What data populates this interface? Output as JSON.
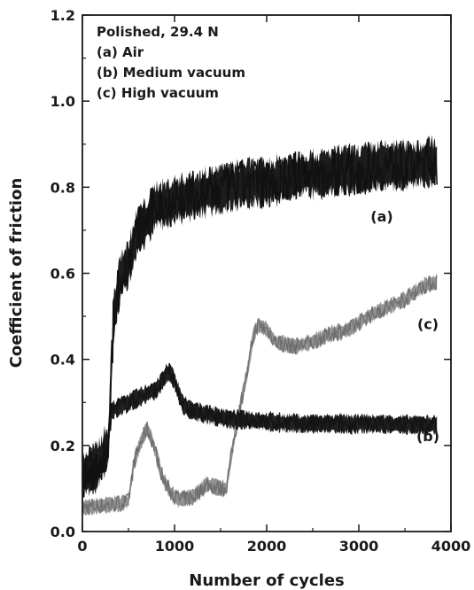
{
  "chart_data": {
    "type": "line",
    "title": "",
    "xlabel": "Number of cycles",
    "ylabel": "Coefficient of friction",
    "xlim": [
      0,
      4000
    ],
    "ylim": [
      0.0,
      1.2
    ],
    "x_ticks": [
      "0",
      "1000",
      "2000",
      "3000",
      "4000"
    ],
    "y_ticks": [
      "0.0",
      "0.2",
      "0.4",
      "0.6",
      "0.8",
      "1.0",
      "1.2"
    ],
    "legend": {
      "placement": "top-left",
      "lines": [
        "Polished, 29.4 N",
        "(a) Air",
        "(b) Medium vacuum",
        "(c) High vacuum"
      ]
    },
    "series": [
      {
        "name": "(a)",
        "color": "#111111",
        "x": [
          0,
          150,
          280,
          340,
          420,
          500,
          600,
          700,
          800,
          900,
          1000,
          1200,
          1400,
          1600,
          1800,
          2000,
          2200,
          2400,
          2600,
          2800,
          3000,
          3200,
          3400,
          3600,
          3800,
          3850
        ],
        "y": [
          0.13,
          0.15,
          0.2,
          0.5,
          0.6,
          0.62,
          0.7,
          0.72,
          0.76,
          0.76,
          0.77,
          0.78,
          0.79,
          0.8,
          0.81,
          0.81,
          0.82,
          0.83,
          0.83,
          0.84,
          0.84,
          0.85,
          0.85,
          0.85,
          0.86,
          0.86
        ],
        "band": 0.09
      },
      {
        "name": "(b)",
        "color": "#151515",
        "x": [
          0,
          150,
          250,
          320,
          400,
          500,
          600,
          700,
          800,
          900,
          950,
          1000,
          1100,
          1200,
          1400,
          1600,
          1800,
          2000,
          2400,
          2800,
          3200,
          3600,
          3850
        ],
        "y": [
          0.12,
          0.14,
          0.17,
          0.28,
          0.29,
          0.3,
          0.31,
          0.32,
          0.33,
          0.36,
          0.37,
          0.35,
          0.29,
          0.28,
          0.27,
          0.26,
          0.26,
          0.255,
          0.25,
          0.25,
          0.25,
          0.248,
          0.248
        ],
        "band": 0.035
      },
      {
        "name": "(c)",
        "color": "#6e6e6e",
        "x": [
          0,
          200,
          400,
          500,
          560,
          620,
          700,
          760,
          800,
          880,
          960,
          1050,
          1200,
          1350,
          1500,
          1560,
          1650,
          1720,
          1800,
          1850,
          1900,
          2000,
          2100,
          2300,
          2500,
          2700,
          2900,
          3100,
          3300,
          3500,
          3700,
          3850
        ],
        "y": [
          0.055,
          0.06,
          0.065,
          0.07,
          0.16,
          0.2,
          0.24,
          0.21,
          0.18,
          0.12,
          0.09,
          0.075,
          0.08,
          0.11,
          0.1,
          0.1,
          0.22,
          0.3,
          0.38,
          0.45,
          0.48,
          0.47,
          0.44,
          0.43,
          0.44,
          0.46,
          0.47,
          0.5,
          0.52,
          0.54,
          0.57,
          0.58
        ],
        "band": 0.03
      }
    ],
    "annotations": [
      {
        "text": "(a)",
        "x": 3250,
        "y": 0.72
      },
      {
        "text": "(c)",
        "x": 3750,
        "y": 0.47
      },
      {
        "text": "(b)",
        "x": 3750,
        "y": 0.21
      }
    ]
  }
}
